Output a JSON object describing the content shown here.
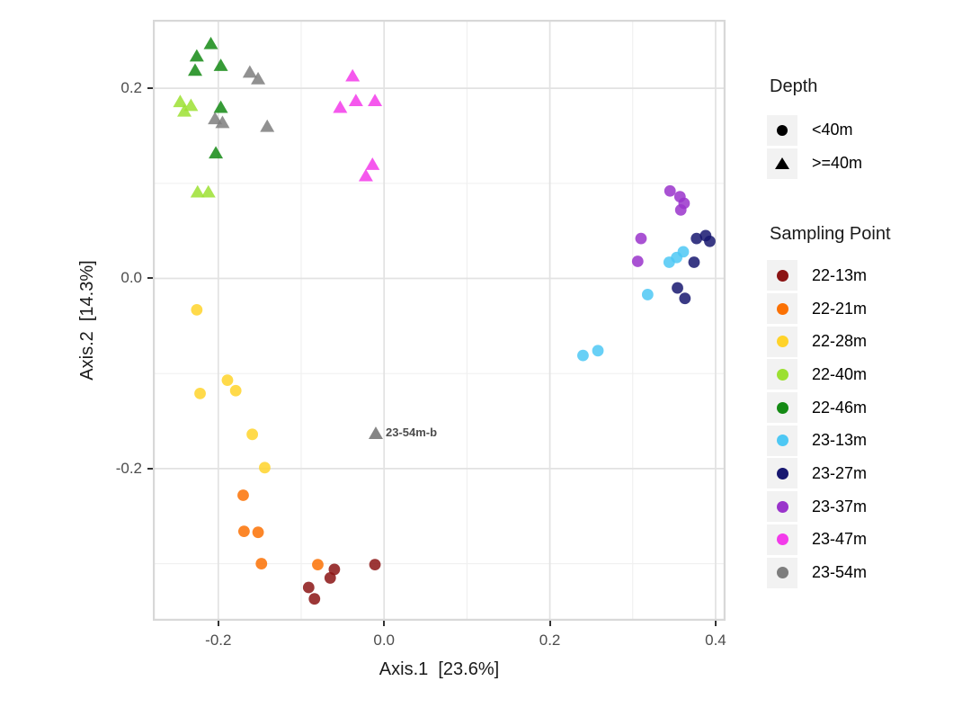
{
  "chart_data": {
    "type": "scatter",
    "title": "",
    "xlabel": "Axis.1  [23.6%]",
    "ylabel": "Axis.2  [14.3%]",
    "xlim": [
      -0.279,
      0.412
    ],
    "ylim": [
      -0.36,
      0.272
    ],
    "grid": "on",
    "legend_position": "right",
    "x_ticks": [
      {
        "value": -0.2,
        "label": "-0.2"
      },
      {
        "value": 0.0,
        "label": "0.0"
      },
      {
        "value": 0.2,
        "label": "0.2"
      },
      {
        "value": 0.4,
        "label": "0.4"
      }
    ],
    "y_ticks": [
      {
        "value": 0.2,
        "label": "0.2"
      },
      {
        "value": 0.0,
        "label": "0.0"
      },
      {
        "value": -0.2,
        "label": "-0.2"
      }
    ],
    "x_minor_gridlines": [
      -0.1,
      0.1,
      0.3
    ],
    "y_minor_gridlines": [
      0.1,
      -0.1,
      -0.3
    ],
    "series": [
      {
        "name": "22-13m",
        "depth": "<40m",
        "shape": "circle",
        "color": "#8B1414",
        "points": [
          [
            -0.06,
            -0.306
          ],
          [
            -0.065,
            -0.315
          ],
          [
            -0.091,
            -0.325
          ],
          [
            -0.084,
            -0.337
          ],
          [
            -0.011,
            -0.301
          ]
        ]
      },
      {
        "name": "22-21m",
        "depth": "<40m",
        "shape": "circle",
        "color": "#FB7104",
        "points": [
          [
            -0.17,
            -0.228
          ],
          [
            -0.169,
            -0.266
          ],
          [
            -0.152,
            -0.267
          ],
          [
            -0.148,
            -0.3
          ],
          [
            -0.08,
            -0.301
          ]
        ]
      },
      {
        "name": "22-28m",
        "depth": "<40m",
        "shape": "circle",
        "color": "#FFD32A",
        "points": [
          [
            -0.226,
            -0.033
          ],
          [
            -0.222,
            -0.121
          ],
          [
            -0.189,
            -0.107
          ],
          [
            -0.179,
            -0.118
          ],
          [
            -0.159,
            -0.164
          ],
          [
            -0.144,
            -0.199
          ]
        ]
      },
      {
        "name": "22-40m",
        "depth": ">=40m",
        "shape": "triangle",
        "color": "#9CE032",
        "points": [
          [
            -0.246,
            0.186
          ],
          [
            -0.233,
            0.182
          ],
          [
            -0.241,
            0.176
          ],
          [
            -0.225,
            0.091
          ],
          [
            -0.212,
            0.091
          ]
        ]
      },
      {
        "name": "22-46m",
        "depth": ">=40m",
        "shape": "triangle",
        "color": "#148A14",
        "points": [
          [
            -0.209,
            0.247
          ],
          [
            -0.226,
            0.234
          ],
          [
            -0.228,
            0.219
          ],
          [
            -0.197,
            0.224
          ],
          [
            -0.197,
            0.18
          ],
          [
            -0.203,
            0.132
          ]
        ]
      },
      {
        "name": "23-13m",
        "depth": "<40m",
        "shape": "circle",
        "color": "#4EC8F4",
        "points": [
          [
            0.344,
            0.017
          ],
          [
            0.353,
            0.022
          ],
          [
            0.361,
            0.028
          ],
          [
            0.318,
            -0.017
          ],
          [
            0.24,
            -0.081
          ],
          [
            0.258,
            -0.076
          ]
        ]
      },
      {
        "name": "23-27m",
        "depth": "<40m",
        "shape": "circle",
        "color": "#171770",
        "points": [
          [
            0.377,
            0.042
          ],
          [
            0.388,
            0.045
          ],
          [
            0.393,
            0.039
          ],
          [
            0.374,
            0.017
          ],
          [
            0.354,
            -0.01
          ],
          [
            0.363,
            -0.021
          ]
        ]
      },
      {
        "name": "23-37m",
        "depth": "<40m",
        "shape": "circle",
        "color": "#9A34CB",
        "points": [
          [
            0.345,
            0.092
          ],
          [
            0.357,
            0.086
          ],
          [
            0.362,
            0.079
          ],
          [
            0.358,
            0.072
          ],
          [
            0.31,
            0.042
          ],
          [
            0.306,
            0.018
          ]
        ]
      },
      {
        "name": "23-47m",
        "depth": ">=40m",
        "shape": "triangle",
        "color": "#F33BEA",
        "points": [
          [
            -0.038,
            0.213
          ],
          [
            -0.053,
            0.18
          ],
          [
            -0.034,
            0.187
          ],
          [
            -0.011,
            0.187
          ],
          [
            -0.014,
            0.12
          ],
          [
            -0.022,
            0.108
          ]
        ]
      },
      {
        "name": "23-54m",
        "depth": ">=40m",
        "shape": "triangle",
        "color": "#7E7E7E",
        "points": [
          [
            -0.162,
            0.217
          ],
          [
            -0.152,
            0.21
          ],
          [
            -0.204,
            0.168
          ],
          [
            -0.195,
            0.164
          ],
          [
            -0.141,
            0.16
          ]
        ]
      }
    ],
    "annotation": {
      "text": "23-54m-b",
      "x": -0.01,
      "y": -0.163,
      "series": "23-54m",
      "shape": "triangle",
      "color": "#7E7E7E"
    }
  },
  "legend": {
    "depth": {
      "title": "Depth",
      "items": [
        {
          "label": "<40m",
          "shape": "circle"
        },
        {
          "label": ">=40m",
          "shape": "triangle"
        }
      ]
    },
    "sampling": {
      "title": "Sampling Point"
    }
  },
  "style_colors": {
    "panel_border": "#D8D8D8",
    "grid_major": "#E2E2E2",
    "grid_minor": "#F0F0F0",
    "tick_text": "#4d4d4d",
    "legend_key_background": "#F2F2F2"
  }
}
